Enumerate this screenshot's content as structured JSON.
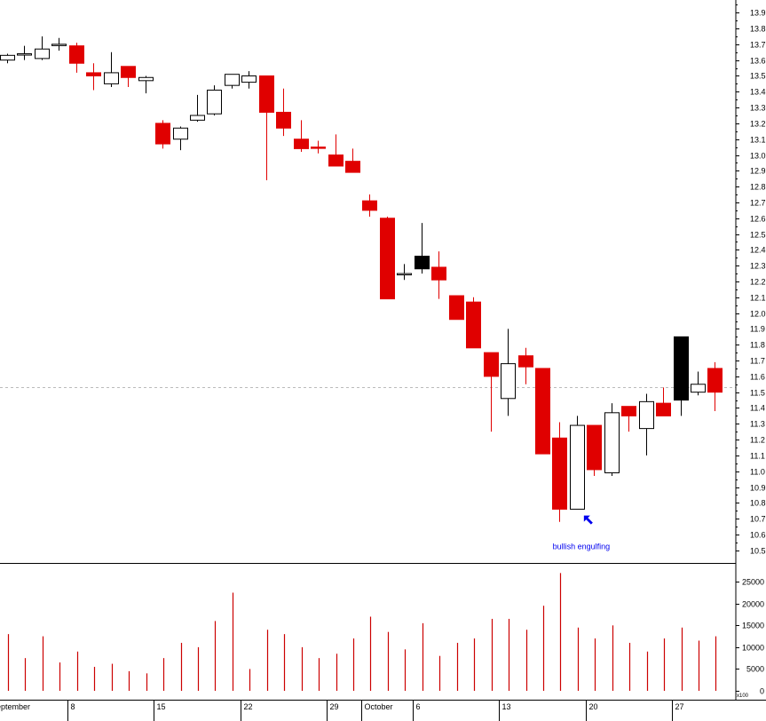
{
  "chart_data": {
    "type": "candlestick",
    "colors": {
      "up_body": "#ffffff",
      "up_outline": "#000000",
      "down_body": "#e00000",
      "black_body": "#000000",
      "volume_bar": "#cc0000",
      "annotation": "#0000ee",
      "reference_line": "#bbbbbb",
      "axis": "#000000"
    },
    "price_axis": {
      "ylim": [
        10.42,
        13.98
      ],
      "ticks": [
        "10.5",
        "10.6",
        "10.7",
        "10.8",
        "10.9",
        "11.0",
        "11.1",
        "11.2",
        "11.3",
        "11.4",
        "11.5",
        "11.6",
        "11.7",
        "11.8",
        "11.9",
        "12.0",
        "12.1",
        "12.2",
        "12.3",
        "12.4",
        "12.5",
        "12.6",
        "12.7",
        "12.8",
        "12.9",
        "13.0",
        "13.1",
        "13.2",
        "13.3",
        "13.4",
        "13.5",
        "13.6",
        "13.7",
        "13.8",
        "13.9"
      ]
    },
    "volume_axis": {
      "ylim": [
        0,
        28500
      ],
      "ticks": [
        "0",
        "5000",
        "10000",
        "15000",
        "20000",
        "25000"
      ]
    },
    "reference_price": 11.53,
    "x_labels": [
      {
        "text": "September",
        "day": 0
      },
      {
        "text": "8",
        "day": 4
      },
      {
        "text": "15",
        "day": 9
      },
      {
        "text": "22",
        "day": 14
      },
      {
        "text": "29",
        "day": 19
      },
      {
        "text": "October",
        "day": 21
      },
      {
        "text": "6",
        "day": 24
      },
      {
        "text": "13",
        "day": 29
      },
      {
        "text": "20",
        "day": 34
      },
      {
        "text": "27",
        "day": 39
      }
    ],
    "axis_unit": "x100",
    "candles": [
      {
        "o": 13.6,
        "h": 13.64,
        "l": 13.58,
        "c": 13.63,
        "v": 13000,
        "color": "up"
      },
      {
        "o": 13.64,
        "h": 13.69,
        "l": 13.6,
        "c": 13.64,
        "v": 7500,
        "color": "up"
      },
      {
        "o": 13.61,
        "h": 13.75,
        "l": 13.6,
        "c": 13.67,
        "v": 12500,
        "color": "up"
      },
      {
        "o": 13.7,
        "h": 13.74,
        "l": 13.66,
        "c": 13.7,
        "v": 6500,
        "color": "up"
      },
      {
        "o": 13.69,
        "h": 13.71,
        "l": 13.52,
        "c": 13.58,
        "v": 9000,
        "color": "down"
      },
      {
        "o": 13.52,
        "h": 13.58,
        "l": 13.41,
        "c": 13.5,
        "v": 5500,
        "color": "down"
      },
      {
        "o": 13.45,
        "h": 13.65,
        "l": 13.43,
        "c": 13.52,
        "v": 6200,
        "color": "up"
      },
      {
        "o": 13.56,
        "h": 13.56,
        "l": 13.43,
        "c": 13.49,
        "v": 4500,
        "color": "down"
      },
      {
        "o": 13.47,
        "h": 13.5,
        "l": 13.39,
        "c": 13.49,
        "v": 4000,
        "color": "up"
      },
      {
        "o": 13.2,
        "h": 13.22,
        "l": 13.04,
        "c": 13.07,
        "v": 7500,
        "color": "down"
      },
      {
        "o": 13.1,
        "h": 13.18,
        "l": 13.03,
        "c": 13.17,
        "v": 11000,
        "color": "up"
      },
      {
        "o": 13.22,
        "h": 13.38,
        "l": 13.21,
        "c": 13.25,
        "v": 10000,
        "color": "up"
      },
      {
        "o": 13.26,
        "h": 13.44,
        "l": 13.25,
        "c": 13.41,
        "v": 16000,
        "color": "up"
      },
      {
        "o": 13.44,
        "h": 13.51,
        "l": 13.42,
        "c": 13.51,
        "v": 22500,
        "color": "up"
      },
      {
        "o": 13.46,
        "h": 13.53,
        "l": 13.42,
        "c": 13.5,
        "v": 5000,
        "color": "up"
      },
      {
        "o": 13.5,
        "h": 13.5,
        "l": 12.84,
        "c": 13.27,
        "v": 14000,
        "color": "down"
      },
      {
        "o": 13.27,
        "h": 13.42,
        "l": 13.12,
        "c": 13.17,
        "v": 13000,
        "color": "down"
      },
      {
        "o": 13.1,
        "h": 13.22,
        "l": 13.02,
        "c": 13.04,
        "v": 10000,
        "color": "down"
      },
      {
        "o": 13.05,
        "h": 13.09,
        "l": 13.01,
        "c": 13.05,
        "v": 7500,
        "color": "down"
      },
      {
        "o": 13.0,
        "h": 13.13,
        "l": 12.93,
        "c": 12.93,
        "v": 8500,
        "color": "down"
      },
      {
        "o": 12.96,
        "h": 13.04,
        "l": 12.89,
        "c": 12.89,
        "v": 12000,
        "color": "down"
      },
      {
        "o": 12.71,
        "h": 12.75,
        "l": 12.61,
        "c": 12.65,
        "v": 17000,
        "color": "down"
      },
      {
        "o": 12.6,
        "h": 12.61,
        "l": 12.09,
        "c": 12.09,
        "v": 13500,
        "color": "down"
      },
      {
        "o": 12.25,
        "h": 12.31,
        "l": 12.21,
        "c": 12.25,
        "v": 9500,
        "color": "up"
      },
      {
        "o": 12.36,
        "h": 12.57,
        "l": 12.25,
        "c": 12.28,
        "v": 15500,
        "color": "black"
      },
      {
        "o": 12.29,
        "h": 12.39,
        "l": 12.09,
        "c": 12.21,
        "v": 8000,
        "color": "down"
      },
      {
        "o": 12.11,
        "h": 12.11,
        "l": 11.96,
        "c": 11.96,
        "v": 11000,
        "color": "down"
      },
      {
        "o": 12.07,
        "h": 12.1,
        "l": 11.78,
        "c": 11.78,
        "v": 12000,
        "color": "down"
      },
      {
        "o": 11.75,
        "h": 11.75,
        "l": 11.25,
        "c": 11.6,
        "v": 16500,
        "color": "down"
      },
      {
        "o": 11.46,
        "h": 11.9,
        "l": 11.35,
        "c": 11.68,
        "v": 16500,
        "color": "up"
      },
      {
        "o": 11.73,
        "h": 11.78,
        "l": 11.55,
        "c": 11.66,
        "v": 14000,
        "color": "down"
      },
      {
        "o": 11.65,
        "h": 11.65,
        "l": 11.11,
        "c": 11.11,
        "v": 19500,
        "color": "down"
      },
      {
        "o": 11.21,
        "h": 11.31,
        "l": 10.68,
        "c": 10.76,
        "v": 27000,
        "color": "down"
      },
      {
        "o": 10.76,
        "h": 11.35,
        "l": 10.76,
        "c": 11.29,
        "v": 14500,
        "color": "up"
      },
      {
        "o": 11.29,
        "h": 11.29,
        "l": 10.97,
        "c": 11.01,
        "v": 12000,
        "color": "down"
      },
      {
        "o": 10.99,
        "h": 11.43,
        "l": 10.97,
        "c": 11.37,
        "v": 15000,
        "color": "up"
      },
      {
        "o": 11.41,
        "h": 11.41,
        "l": 11.25,
        "c": 11.35,
        "v": 11000,
        "color": "down"
      },
      {
        "o": 11.27,
        "h": 11.49,
        "l": 11.1,
        "c": 11.44,
        "v": 9000,
        "color": "up"
      },
      {
        "o": 11.43,
        "h": 11.53,
        "l": 11.35,
        "c": 11.35,
        "v": 12000,
        "color": "down"
      },
      {
        "o": 11.85,
        "h": 11.85,
        "l": 11.35,
        "c": 11.45,
        "v": 14500,
        "color": "black"
      },
      {
        "o": 11.5,
        "h": 11.63,
        "l": 11.48,
        "c": 11.55,
        "v": 11500,
        "color": "up"
      },
      {
        "o": 11.65,
        "h": 11.69,
        "l": 11.38,
        "c": 11.5,
        "v": 12500,
        "color": "down"
      }
    ],
    "annotation": {
      "text": "bullish engulfing",
      "day": 33,
      "arrow_price": 10.72
    }
  }
}
